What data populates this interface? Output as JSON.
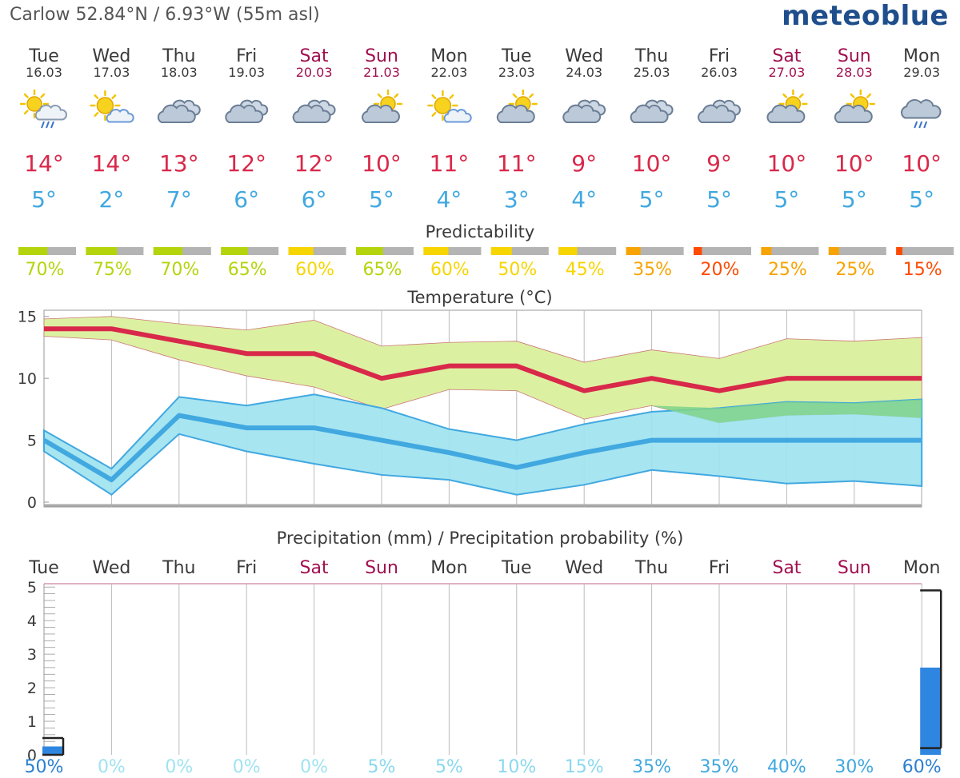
{
  "header": {
    "location": "Carlow  52.84°N / 6.93°W (55m asl)",
    "brand": "meteoblue"
  },
  "days": [
    {
      "name": "Tue",
      "date": "16.03",
      "icon": "sun-cloud-rain-icon",
      "max": "14°",
      "min": "5°",
      "weekend": false
    },
    {
      "name": "Wed",
      "date": "17.03",
      "icon": "sun-cloud-icon",
      "max": "14°",
      "min": "2°",
      "weekend": false
    },
    {
      "name": "Thu",
      "date": "18.03",
      "icon": "clouds-icon",
      "max": "13°",
      "min": "7°",
      "weekend": false
    },
    {
      "name": "Fri",
      "date": "19.03",
      "icon": "clouds-icon",
      "max": "12°",
      "min": "6°",
      "weekend": false
    },
    {
      "name": "Sat",
      "date": "20.03",
      "icon": "clouds-icon",
      "max": "12°",
      "min": "6°",
      "weekend": true
    },
    {
      "name": "Sun",
      "date": "21.03",
      "icon": "cloud-sun-icon",
      "max": "10°",
      "min": "5°",
      "weekend": true
    },
    {
      "name": "Mon",
      "date": "22.03",
      "icon": "sun-cloud-icon",
      "max": "11°",
      "min": "4°",
      "weekend": false
    },
    {
      "name": "Tue",
      "date": "23.03",
      "icon": "cloud-sun-icon",
      "max": "11°",
      "min": "3°",
      "weekend": false
    },
    {
      "name": "Wed",
      "date": "24.03",
      "icon": "clouds-icon",
      "max": "9°",
      "min": "4°",
      "weekend": false
    },
    {
      "name": "Thu",
      "date": "25.03",
      "icon": "clouds-icon",
      "max": "10°",
      "min": "5°",
      "weekend": false
    },
    {
      "name": "Fri",
      "date": "26.03",
      "icon": "clouds-icon",
      "max": "9°",
      "min": "5°",
      "weekend": false
    },
    {
      "name": "Sat",
      "date": "27.03",
      "icon": "cloud-sun-icon",
      "max": "10°",
      "min": "5°",
      "weekend": true
    },
    {
      "name": "Sun",
      "date": "28.03",
      "icon": "cloud-sun-icon",
      "max": "10°",
      "min": "5°",
      "weekend": true
    },
    {
      "name": "Mon",
      "date": "29.03",
      "icon": "cloud-rain-icon",
      "max": "10°",
      "min": "5°",
      "weekend": false
    }
  ],
  "predictability": {
    "title": "Predictability",
    "values": [
      70,
      75,
      70,
      65,
      60,
      65,
      60,
      50,
      45,
      35,
      20,
      25,
      25,
      15
    ],
    "labels": [
      "70%",
      "75%",
      "70%",
      "65%",
      "60%",
      "65%",
      "60%",
      "50%",
      "45%",
      "35%",
      "20%",
      "25%",
      "25%",
      "15%"
    ],
    "colors": [
      "#b5d40c",
      "#b5d40c",
      "#b5d40c",
      "#b5d40c",
      "#f7d500",
      "#b5d40c",
      "#f7d500",
      "#f7d500",
      "#f7d500",
      "#f7a300",
      "#ff4a00",
      "#f7a300",
      "#f7a300",
      "#ff4a00"
    ]
  },
  "chart_data": [
    {
      "type": "line",
      "title": "Temperature (°C)",
      "x": [
        "Tue",
        "Wed",
        "Thu",
        "Fri",
        "Sat",
        "Sun",
        "Mon",
        "Tue",
        "Wed",
        "Thu",
        "Fri",
        "Sat",
        "Sun",
        "Mon"
      ],
      "ylim": [
        0,
        15.5
      ],
      "yticks": [
        0,
        5,
        10,
        15
      ],
      "grid": true,
      "series": [
        {
          "role": "max",
          "values": [
            14,
            14,
            13,
            12,
            12,
            10,
            11,
            11,
            9,
            10,
            9,
            10,
            10,
            10
          ],
          "color": "#d8294a",
          "upper": [
            14.8,
            15,
            14.4,
            13.9,
            14.7,
            12.6,
            12.9,
            13,
            11.3,
            12.3,
            11.6,
            13.2,
            13,
            13.3
          ],
          "lower": [
            13.4,
            13.1,
            11.5,
            10.2,
            9.3,
            7.5,
            9.1,
            9,
            6.7,
            7.8,
            6.4,
            7,
            7.1,
            6.8
          ],
          "band_color": "#dcf0a2"
        },
        {
          "role": "min",
          "values": [
            5,
            1.8,
            7,
            6,
            6,
            5,
            4,
            2.8,
            4,
            5,
            5,
            5,
            5,
            5
          ],
          "color": "#41a8e0",
          "upper": [
            5.8,
            2.7,
            8.5,
            7.8,
            8.7,
            7.6,
            5.9,
            5,
            6.3,
            7.3,
            7.6,
            8.1,
            8,
            8.3
          ],
          "lower": [
            4.1,
            0.6,
            5.5,
            4.1,
            3.1,
            2.2,
            1.8,
            0.6,
            1.4,
            2.6,
            2.1,
            1.5,
            1.7,
            1.3
          ],
          "band_color": "#9fe3f0"
        }
      ]
    },
    {
      "type": "bar",
      "title": "Precipitation (mm) / Precipitation probability (%)",
      "categories": [
        "Tue",
        "Wed",
        "Thu",
        "Fri",
        "Sat",
        "Sun",
        "Mon",
        "Tue",
        "Wed",
        "Thu",
        "Fri",
        "Sat",
        "Sun",
        "Mon"
      ],
      "ylim": [
        0,
        5.1
      ],
      "yticks": [
        0,
        1,
        2,
        3,
        4,
        5
      ],
      "values": [
        0.25,
        0,
        0,
        0,
        0,
        0,
        0,
        0,
        0,
        0,
        0,
        0,
        0,
        2.6
      ],
      "range_high": [
        0.5,
        0,
        0,
        0,
        0,
        0,
        0,
        0,
        0,
        0,
        0,
        0,
        0,
        4.9
      ],
      "range_low": [
        0,
        0,
        0,
        0,
        0,
        0,
        0,
        0,
        0,
        0,
        0,
        0,
        0,
        0.2
      ],
      "probability": [
        "50%",
        "0%",
        "0%",
        "0%",
        "0%",
        "5%",
        "5%",
        "10%",
        "15%",
        "35%",
        "35%",
        "40%",
        "30%",
        "60%"
      ],
      "probability_colors": [
        "#2a7fd0",
        "#9fe3f0",
        "#9fe3f0",
        "#9fe3f0",
        "#9fe3f0",
        "#8ad8ee",
        "#8ad8ee",
        "#8ad8ee",
        "#8ad8ee",
        "#41a8e0",
        "#41a8e0",
        "#41a8e0",
        "#41a8e0",
        "#2a7fd0"
      ],
      "bar_color": "#2f86e0"
    }
  ],
  "colors": {
    "weekend": "#a0104f",
    "weekday": "#3a3a3a",
    "max_temp": "#d8294a",
    "min_temp": "#41a8e0",
    "predictability_track": "#b4b4b4"
  }
}
